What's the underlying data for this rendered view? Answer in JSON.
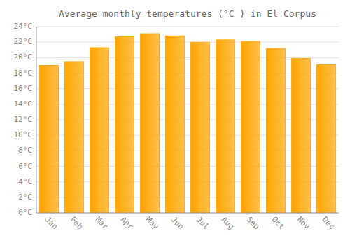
{
  "chart_data": {
    "type": "bar",
    "title": "Average monthly temperatures (°C ) in El Corpus",
    "categories": [
      "Jan",
      "Feb",
      "Mar",
      "Apr",
      "May",
      "Jun",
      "Jul",
      "Aug",
      "Sep",
      "Oct",
      "Nov",
      "Dec"
    ],
    "values": [
      19.0,
      19.5,
      21.3,
      22.7,
      23.1,
      22.8,
      22.0,
      22.3,
      22.1,
      21.2,
      19.9,
      19.1
    ],
    "color": "#FFA500",
    "ylim": [
      0,
      24
    ],
    "yticks": [
      {
        "value": 0,
        "label": "0°C"
      },
      {
        "value": 2,
        "label": "2°C"
      },
      {
        "value": 4,
        "label": "4°C"
      },
      {
        "value": 6,
        "label": "6°C"
      },
      {
        "value": 8,
        "label": "8°C"
      },
      {
        "value": 10,
        "label": "10°C"
      },
      {
        "value": 12,
        "label": "12°C"
      },
      {
        "value": 14,
        "label": "14°C"
      },
      {
        "value": 16,
        "label": "16°C"
      },
      {
        "value": 18,
        "label": "18°C"
      },
      {
        "value": 20,
        "label": "20°C"
      },
      {
        "value": 22,
        "label": "22°C"
      },
      {
        "value": 24,
        "label": "24°C"
      }
    ],
    "grid": true
  }
}
